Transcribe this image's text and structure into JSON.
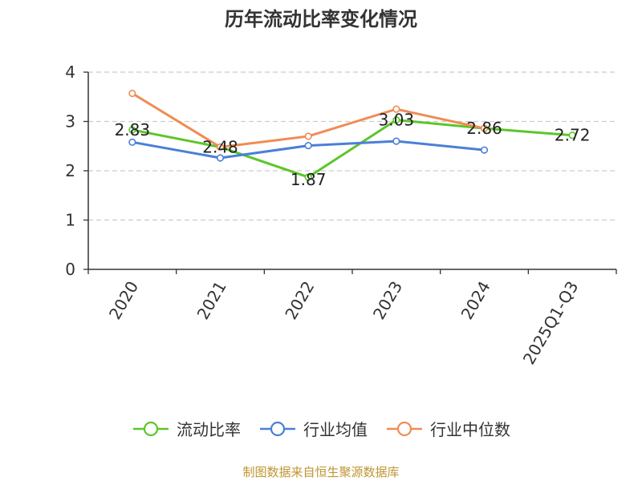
{
  "chart_data": {
    "type": "line",
    "title": "历年流动比率变化情况",
    "categories": [
      "2020",
      "2021",
      "2022",
      "2023",
      "2024",
      "2025Q1-Q3"
    ],
    "ylim": [
      0,
      4
    ],
    "yticks": [
      "0",
      "1",
      "2",
      "3",
      "4"
    ],
    "grid": true,
    "legend_position": "bottom",
    "series": [
      {
        "name": "流动比率",
        "color": "#5cc62a",
        "values": [
          2.83,
          2.48,
          1.87,
          3.03,
          2.86,
          2.72
        ],
        "labels": [
          "2.83",
          "2.48",
          "1.87",
          "3.03",
          "2.86",
          "2.72"
        ]
      },
      {
        "name": "行业均值",
        "color": "#4a7fd8",
        "values": [
          2.58,
          2.26,
          2.51,
          2.6,
          2.42,
          null
        ]
      },
      {
        "name": "行业中位数",
        "color": "#f08c55",
        "values": [
          3.57,
          2.48,
          2.7,
          3.25,
          2.86,
          null
        ]
      }
    ]
  },
  "footer": {
    "source": "制图数据来自恒生聚源数据库"
  }
}
